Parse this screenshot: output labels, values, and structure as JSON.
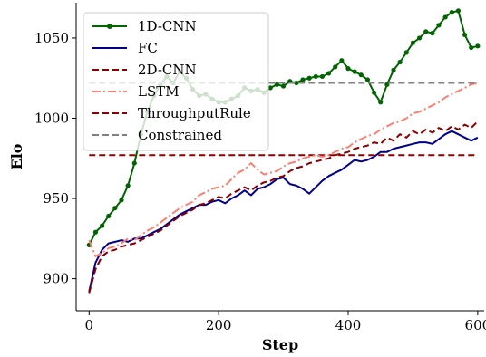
{
  "chart_data": {
    "type": "line",
    "xlabel": "Step",
    "ylabel": "Elo",
    "xlim": [
      -20,
      610
    ],
    "ylim": [
      880,
      1072
    ],
    "xticks": [
      0,
      200,
      400,
      600
    ],
    "yticks": [
      900,
      950,
      1000,
      1050
    ],
    "grid": false,
    "legend_position": "top-left",
    "series": [
      {
        "name": "1D-CNN",
        "color": "#006400",
        "style": "solid-markers",
        "x": [
          0,
          10,
          20,
          30,
          40,
          50,
          60,
          70,
          80,
          90,
          100,
          110,
          120,
          130,
          140,
          150,
          160,
          170,
          180,
          190,
          200,
          210,
          220,
          230,
          240,
          250,
          260,
          270,
          280,
          290,
          300,
          310,
          320,
          330,
          340,
          350,
          360,
          370,
          380,
          390,
          400,
          410,
          420,
          430,
          440,
          450,
          460,
          470,
          480,
          490,
          500,
          510,
          520,
          530,
          540,
          550,
          560,
          570,
          580,
          590,
          600
        ],
        "y": [
          921,
          929,
          933,
          939,
          944,
          949,
          958,
          972,
          990,
          1004,
          1014,
          1021,
          1026,
          1022,
          1029,
          1025,
          1018,
          1014,
          1015,
          1012,
          1010,
          1010,
          1012,
          1014,
          1019,
          1017,
          1018,
          1016,
          1019,
          1021,
          1020,
          1023,
          1022,
          1024,
          1025,
          1026,
          1026,
          1028,
          1032,
          1036,
          1031,
          1029,
          1027,
          1024,
          1016,
          1010,
          1021,
          1030,
          1035,
          1041,
          1047,
          1050,
          1054,
          1053,
          1058,
          1063,
          1066,
          1067,
          1052,
          1044,
          1045
        ]
      },
      {
        "name": "FC",
        "color": "#00008b",
        "style": "solid",
        "x": [
          0,
          10,
          20,
          30,
          40,
          50,
          60,
          70,
          80,
          90,
          100,
          110,
          120,
          130,
          140,
          150,
          160,
          170,
          180,
          190,
          200,
          210,
          220,
          230,
          240,
          250,
          260,
          270,
          280,
          290,
          300,
          310,
          320,
          330,
          340,
          350,
          360,
          370,
          380,
          390,
          400,
          410,
          420,
          430,
          440,
          450,
          460,
          470,
          480,
          490,
          500,
          510,
          520,
          530,
          540,
          550,
          560,
          570,
          580,
          590,
          600
        ],
        "y": [
          892,
          910,
          918,
          922,
          923,
          924,
          923,
          925,
          925,
          927,
          929,
          931,
          934,
          937,
          940,
          942,
          944,
          946,
          946,
          948,
          949,
          947,
          950,
          952,
          955,
          952,
          956,
          957,
          959,
          962,
          963,
          959,
          958,
          956,
          953,
          957,
          961,
          964,
          966,
          968,
          971,
          974,
          973,
          974,
          976,
          979,
          979,
          981,
          982,
          983,
          984,
          985,
          985,
          984,
          987,
          990,
          992,
          990,
          988,
          986,
          988
        ]
      },
      {
        "name": "2D-CNN",
        "color": "#8b0000",
        "style": "dashed-constant",
        "x": [
          0,
          600
        ],
        "y": [
          977,
          977
        ]
      },
      {
        "name": "LSTM",
        "color": "#fa8072",
        "style": "dashdot",
        "x": [
          0,
          10,
          20,
          30,
          40,
          50,
          60,
          70,
          80,
          90,
          100,
          110,
          120,
          130,
          140,
          150,
          160,
          170,
          180,
          190,
          200,
          210,
          220,
          230,
          240,
          250,
          260,
          270,
          280,
          290,
          300,
          310,
          320,
          330,
          340,
          350,
          360,
          370,
          380,
          390,
          400,
          410,
          420,
          430,
          440,
          450,
          460,
          470,
          480,
          490,
          500,
          510,
          520,
          530,
          540,
          550,
          560,
          570,
          580,
          590,
          600
        ],
        "y": [
          924,
          914,
          916,
          919,
          920,
          922,
          925,
          924,
          927,
          930,
          932,
          935,
          938,
          941,
          944,
          946,
          948,
          952,
          954,
          956,
          957,
          958,
          962,
          966,
          968,
          972,
          968,
          965,
          966,
          967,
          970,
          972,
          973,
          975,
          976,
          977,
          976,
          977,
          979,
          981,
          982,
          985,
          987,
          989,
          990,
          993,
          995,
          997,
          998,
          1000,
          1003,
          1004,
          1006,
          1008,
          1010,
          1013,
          1015,
          1017,
          1019,
          1021,
          1022
        ]
      },
      {
        "name": "ThroughputRule",
        "color": "#8b0000",
        "style": "dashed",
        "x": [
          0,
          10,
          20,
          30,
          40,
          50,
          60,
          70,
          80,
          90,
          100,
          110,
          120,
          130,
          140,
          150,
          160,
          170,
          180,
          190,
          200,
          210,
          220,
          230,
          240,
          250,
          260,
          270,
          280,
          290,
          300,
          310,
          320,
          330,
          340,
          350,
          360,
          370,
          380,
          390,
          400,
          410,
          420,
          430,
          440,
          450,
          460,
          470,
          480,
          490,
          500,
          510,
          520,
          530,
          540,
          550,
          560,
          570,
          580,
          590,
          600
        ],
        "y": [
          891,
          906,
          914,
          917,
          918,
          920,
          921,
          922,
          924,
          926,
          928,
          930,
          933,
          936,
          939,
          941,
          943,
          946,
          947,
          949,
          951,
          950,
          953,
          955,
          957,
          955,
          958,
          960,
          961,
          963,
          964,
          967,
          969,
          970,
          972,
          973,
          974,
          975,
          977,
          978,
          979,
          981,
          982,
          983,
          985,
          984,
          988,
          986,
          990,
          988,
          992,
          990,
          993,
          991,
          994,
          992,
          995,
          993,
          996,
          994,
          998
        ]
      },
      {
        "name": "Constrained",
        "color": "#808080",
        "style": "dashed-constant",
        "x": [
          0,
          600
        ],
        "y": [
          1022,
          1022
        ]
      }
    ]
  }
}
